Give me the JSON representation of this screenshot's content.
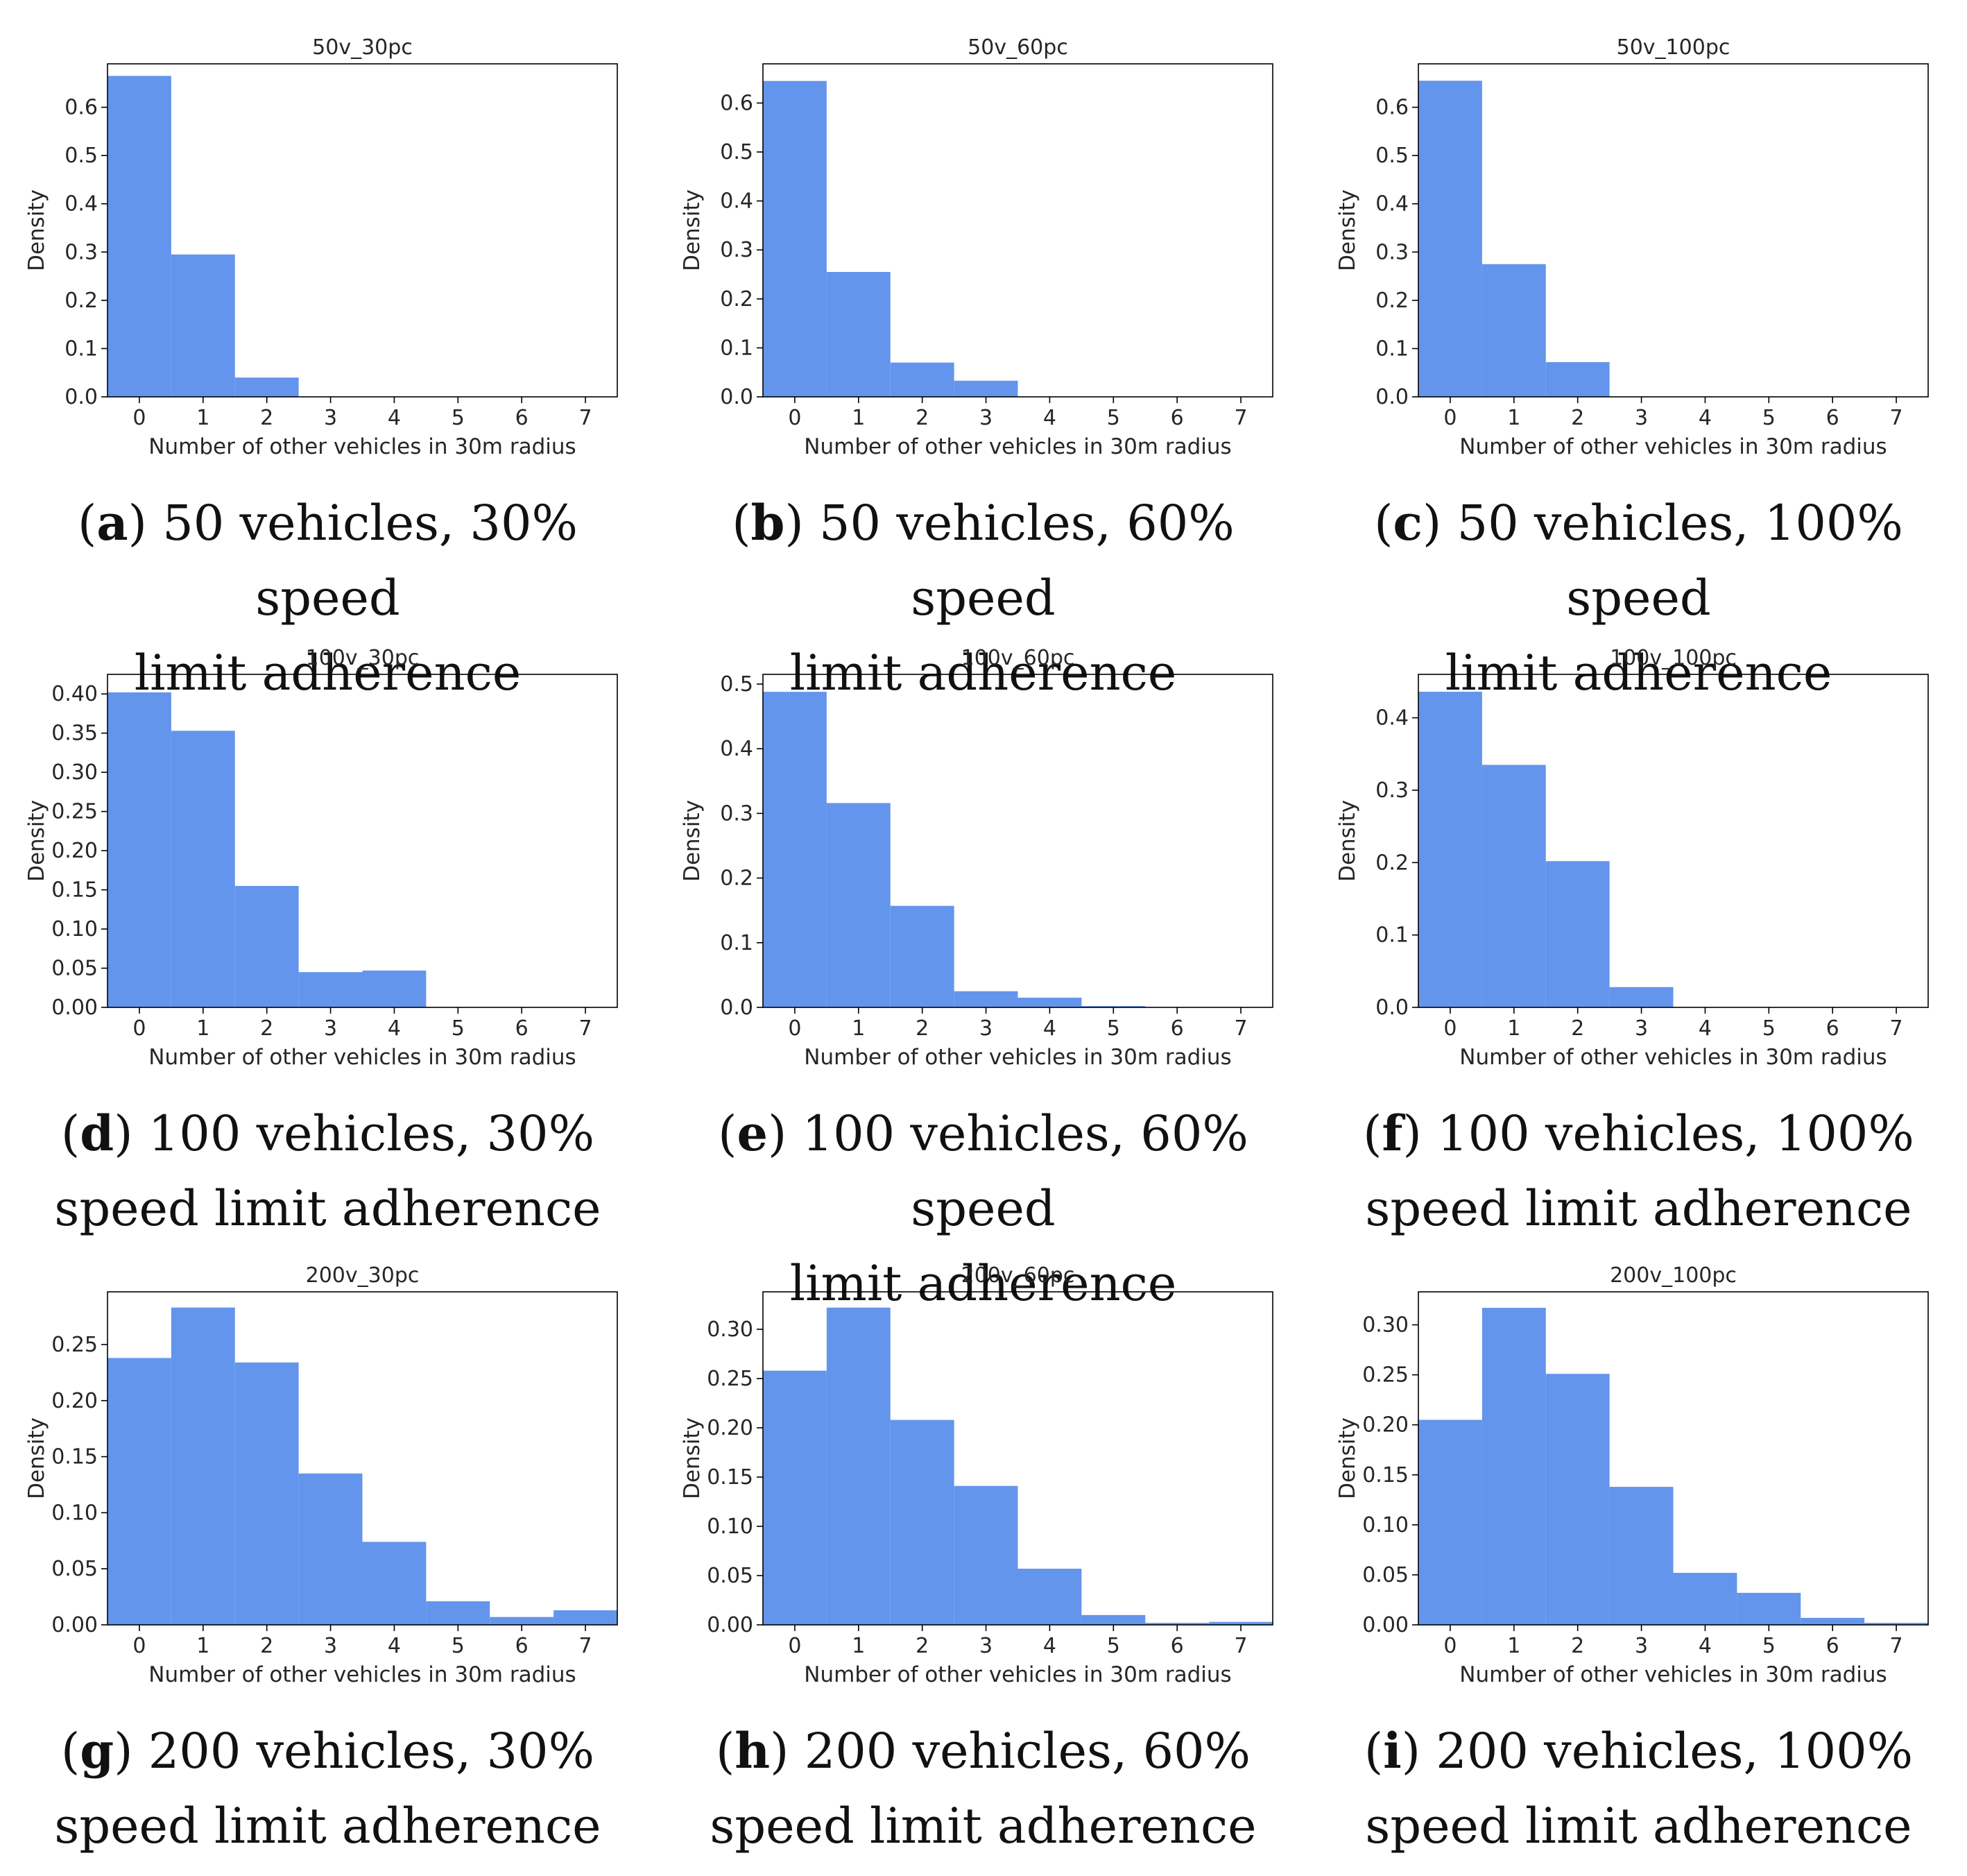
{
  "bar_color": "#6495ED",
  "chart_data": [
    {
      "type": "bar",
      "title": "50v_30pc",
      "categories": [
        0,
        1,
        2,
        3,
        4,
        5,
        6,
        7
      ],
      "values": [
        0.665,
        0.295,
        0.04,
        0,
        0,
        0,
        0,
        0
      ],
      "xlabel": "Number of other vehicles in 30m radius",
      "ylabel": "Density",
      "ylim": [
        0,
        0.69
      ],
      "yticks": [
        "0.0",
        "0.1",
        "0.2",
        "0.3",
        "0.4",
        "0.5",
        "0.6"
      ],
      "xticks": [
        "0",
        "1",
        "2",
        "3",
        "4",
        "5",
        "6",
        "7"
      ]
    },
    {
      "type": "bar",
      "title": "50v_60pc",
      "categories": [
        0,
        1,
        2,
        3,
        4,
        5,
        6,
        7
      ],
      "values": [
        0.645,
        0.255,
        0.07,
        0.033,
        0,
        0,
        0,
        0
      ],
      "xlabel": "Number of other vehicles in 30m radius",
      "ylabel": "Density",
      "ylim": [
        0,
        0.68
      ],
      "yticks": [
        "0.0",
        "0.1",
        "0.2",
        "0.3",
        "0.4",
        "0.5",
        "0.6"
      ],
      "xticks": [
        "0",
        "1",
        "2",
        "3",
        "4",
        "5",
        "6",
        "7"
      ]
    },
    {
      "type": "bar",
      "title": "50v_100pc",
      "categories": [
        0,
        1,
        2,
        3,
        4,
        5,
        6,
        7
      ],
      "values": [
        0.655,
        0.275,
        0.072,
        0,
        0,
        0,
        0,
        0
      ],
      "xlabel": "Number of other vehicles in 30m radius",
      "ylabel": "Density",
      "ylim": [
        0,
        0.69
      ],
      "yticks": [
        "0.0",
        "0.1",
        "0.2",
        "0.3",
        "0.4",
        "0.5",
        "0.6"
      ],
      "xticks": [
        "0",
        "1",
        "2",
        "3",
        "4",
        "5",
        "6",
        "7"
      ]
    },
    {
      "type": "bar",
      "title": "100v_30pc",
      "categories": [
        0,
        1,
        2,
        3,
        4,
        5,
        6,
        7
      ],
      "values": [
        0.402,
        0.353,
        0.155,
        0.045,
        0.047,
        0,
        0,
        0
      ],
      "xlabel": "Number of other vehicles in 30m radius",
      "ylabel": "Density",
      "ylim": [
        0,
        0.425
      ],
      "yticks": [
        "0.00",
        "0.05",
        "0.10",
        "0.15",
        "0.20",
        "0.25",
        "0.30",
        "0.35",
        "0.40"
      ],
      "xticks": [
        "0",
        "1",
        "2",
        "3",
        "4",
        "5",
        "6",
        "7"
      ]
    },
    {
      "type": "bar",
      "title": "100v_60pc",
      "categories": [
        0,
        1,
        2,
        3,
        4,
        5,
        6,
        7
      ],
      "values": [
        0.488,
        0.316,
        0.157,
        0.025,
        0.015,
        0.002,
        0,
        0
      ],
      "xlabel": "Number of other vehicles in 30m radius",
      "ylabel": "Density",
      "ylim": [
        0,
        0.515
      ],
      "yticks": [
        "0.0",
        "0.1",
        "0.2",
        "0.3",
        "0.4",
        "0.5"
      ],
      "xticks": [
        "0",
        "1",
        "2",
        "3",
        "4",
        "5",
        "6",
        "7"
      ]
    },
    {
      "type": "bar",
      "title": "100v_100pc",
      "categories": [
        0,
        1,
        2,
        3,
        4,
        5,
        6,
        7
      ],
      "values": [
        0.436,
        0.335,
        0.202,
        0.028,
        0,
        0,
        0,
        0
      ],
      "xlabel": "Number of other vehicles in 30m radius",
      "ylabel": "Density",
      "ylim": [
        0,
        0.46
      ],
      "yticks": [
        "0.0",
        "0.1",
        "0.2",
        "0.3",
        "0.4"
      ],
      "xticks": [
        "0",
        "1",
        "2",
        "3",
        "4",
        "5",
        "6",
        "7"
      ]
    },
    {
      "type": "bar",
      "title": "200v_30pc",
      "categories": [
        0,
        1,
        2,
        3,
        4,
        5,
        6,
        7
      ],
      "values": [
        0.238,
        0.283,
        0.234,
        0.135,
        0.074,
        0.021,
        0.007,
        0.013
      ],
      "xlabel": "Number of other vehicles in 30m radius",
      "ylabel": "Density",
      "ylim": [
        0,
        0.297
      ],
      "yticks": [
        "0.00",
        "0.05",
        "0.10",
        "0.15",
        "0.20",
        "0.25"
      ],
      "xticks": [
        "0",
        "1",
        "2",
        "3",
        "4",
        "5",
        "6",
        "7"
      ]
    },
    {
      "type": "bar",
      "title": "200v_60pc",
      "categories": [
        0,
        1,
        2,
        3,
        4,
        5,
        6,
        7
      ],
      "values": [
        0.258,
        0.322,
        0.208,
        0.141,
        0.057,
        0.01,
        0.002,
        0.003
      ],
      "xlabel": "Number of other vehicles in 30m radius",
      "ylabel": "Density",
      "ylim": [
        0,
        0.338
      ],
      "yticks": [
        "0.00",
        "0.05",
        "0.10",
        "0.15",
        "0.20",
        "0.25",
        "0.30"
      ],
      "xticks": [
        "0",
        "1",
        "2",
        "3",
        "4",
        "5",
        "6",
        "7"
      ]
    },
    {
      "type": "bar",
      "title": "200v_100pc",
      "categories": [
        0,
        1,
        2,
        3,
        4,
        5,
        6,
        7
      ],
      "values": [
        0.205,
        0.317,
        0.251,
        0.138,
        0.052,
        0.032,
        0.007,
        0.002
      ],
      "xlabel": "Number of other vehicles in 30m radius",
      "ylabel": "Density",
      "ylim": [
        0,
        0.333
      ],
      "yticks": [
        "0.00",
        "0.05",
        "0.10",
        "0.15",
        "0.20",
        "0.25",
        "0.30"
      ],
      "xticks": [
        "0",
        "1",
        "2",
        "3",
        "4",
        "5",
        "6",
        "7"
      ]
    }
  ],
  "captions": [
    {
      "letter": "a",
      "line1": " 50 vehicles, 30% speed",
      "line2": "limit adherence"
    },
    {
      "letter": "b",
      "line1": " 50 vehicles, 60% speed",
      "line2": "limit adherence"
    },
    {
      "letter": "c",
      "line1": " 50 vehicles, 100% speed",
      "line2": "limit adherence"
    },
    {
      "letter": "d",
      "line1": " 100 vehicles, 30%",
      "line2": "speed limit adherence"
    },
    {
      "letter": "e",
      "line1": " 100 vehicles, 60% speed",
      "line2": "limit adherence"
    },
    {
      "letter": "f",
      "line1": " 100 vehicles, 100%",
      "line2": "speed limit adherence"
    },
    {
      "letter": "g",
      "line1": " 200 vehicles, 30%",
      "line2": "speed limit adherence"
    },
    {
      "letter": "h",
      "line1": " 200 vehicles, 60%",
      "line2": "speed limit adherence"
    },
    {
      "letter": "i",
      "line1": " 200 vehicles, 100%",
      "line2": "speed limit adherence"
    }
  ]
}
